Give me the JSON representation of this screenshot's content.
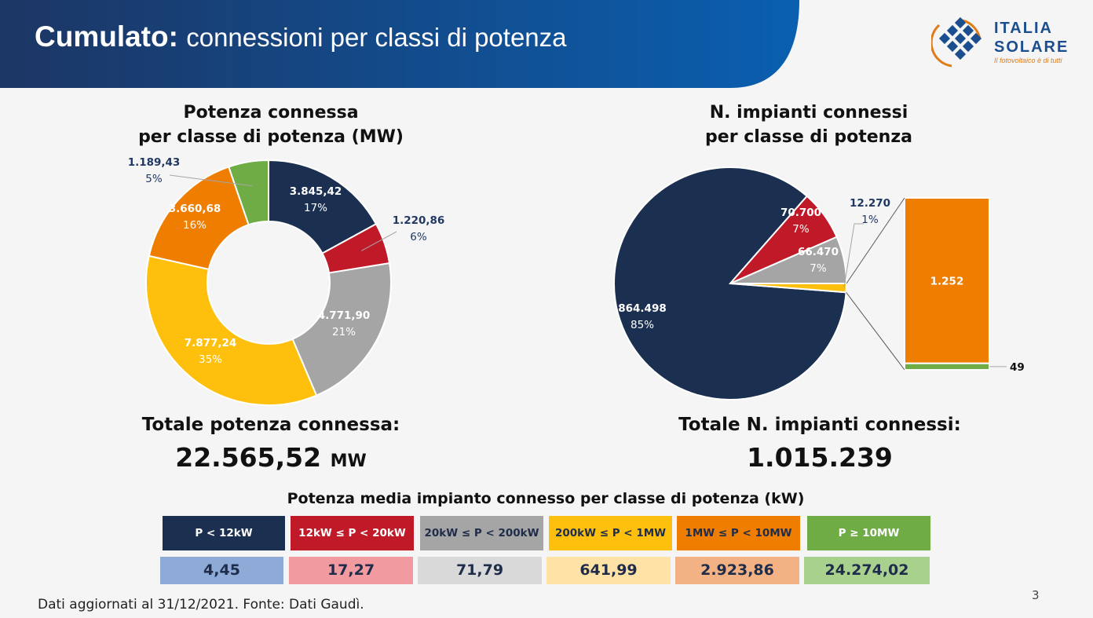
{
  "header": {
    "title_bold": "Cumulato:",
    "title_rest": "connessioni per classi di potenza",
    "logo_line1": "ITALIA",
    "logo_line2": "SOLARE",
    "logo_tagline": "Il fotovoltaico è di tutti"
  },
  "colors": {
    "header_dark": "#1c3664",
    "header_light": "#0a5fb0",
    "navy": "#1b3050",
    "red": "#c01a28",
    "gray": "#a5a5a5",
    "yellow": "#ffc00d",
    "orange": "#ee7d00",
    "green": "#6fac46"
  },
  "chart_data": [
    {
      "type": "pie",
      "subtype": "donut",
      "title_line1": "Potenza connessa",
      "title_line2": "per classe di potenza (MW)",
      "slices": [
        {
          "label": "3.845,42",
          "pct": "17%",
          "value": 3845.42,
          "color": "#1b3050"
        },
        {
          "label": "1.220,86",
          "pct": "6%",
          "value": 1220.86,
          "color": "#c01a28"
        },
        {
          "label": "4.771,90",
          "pct": "21%",
          "value": 4771.9,
          "color": "#a5a5a5"
        },
        {
          "label": "7.877,24",
          "pct": "35%",
          "value": 7877.24,
          "color": "#ffc00d"
        },
        {
          "label": "3.660,68",
          "pct": "16%",
          "value": 3660.68,
          "color": "#ee7d00"
        },
        {
          "label": "1.189,43",
          "pct": "5%",
          "value": 1189.43,
          "color": "#6fac46"
        }
      ],
      "total_label": "Totale potenza connessa:",
      "total_value": "22.565,52",
      "total_unit": "MW"
    },
    {
      "type": "pie",
      "subtype": "bar-of-pie",
      "title_line1": "N. impianti connessi",
      "title_line2": "per classe di potenza",
      "slices": [
        {
          "label": "864.498",
          "pct": "85%",
          "value": 864498,
          "color": "#1b3050"
        },
        {
          "label": "70.700",
          "pct": "7%",
          "value": 70700,
          "color": "#c01a28"
        },
        {
          "label": "66.470",
          "pct": "7%",
          "value": 66470,
          "color": "#a5a5a5"
        },
        {
          "label": "12.270",
          "pct": "1%",
          "value": 12270,
          "color": "#ffc00d"
        }
      ],
      "bar_segments": [
        {
          "label": "1.252",
          "value": 1252,
          "color": "#ee7d00"
        },
        {
          "label": "49",
          "value": 49,
          "color": "#6fac46"
        }
      ],
      "total_label": "Totale N. impianti connessi:",
      "total_value": "1.015.239"
    }
  ],
  "average_table": {
    "title": "Potenza media impianto connesso per classe di potenza (kW)",
    "classes": [
      {
        "label": "P < 12kW",
        "value": "4,45",
        "bg": "#1b3050",
        "fg": "#ffffff",
        "val_bg": "#8eaad6"
      },
      {
        "label": "12kW ≤ P < 20kW",
        "value": "17,27",
        "bg": "#c01a28",
        "fg": "#ffffff",
        "val_bg": "#f19aa0"
      },
      {
        "label": "20kW ≤ P < 200kW",
        "value": "71,79",
        "bg": "#a5a5a5",
        "fg": "#1f2d4a",
        "val_bg": "#d9d9d9"
      },
      {
        "label": "200kW ≤ P < 1MW",
        "value": "641,99",
        "bg": "#ffc00d",
        "fg": "#1f2d4a",
        "val_bg": "#ffe2a6"
      },
      {
        "label": "1MW ≤ P < 10MW",
        "value": "2.923,86",
        "bg": "#ee7d00",
        "fg": "#1f2d4a",
        "val_bg": "#f3b283"
      },
      {
        "label": "P ≥ 10MW",
        "value": "24.274,02",
        "bg": "#6fac46",
        "fg": "#ffffff",
        "val_bg": "#a9d18e"
      }
    ]
  },
  "footer": {
    "source": "Dati aggiornati al 31/12/2021. Fonte: Dati Gaudì.",
    "page": "3"
  }
}
